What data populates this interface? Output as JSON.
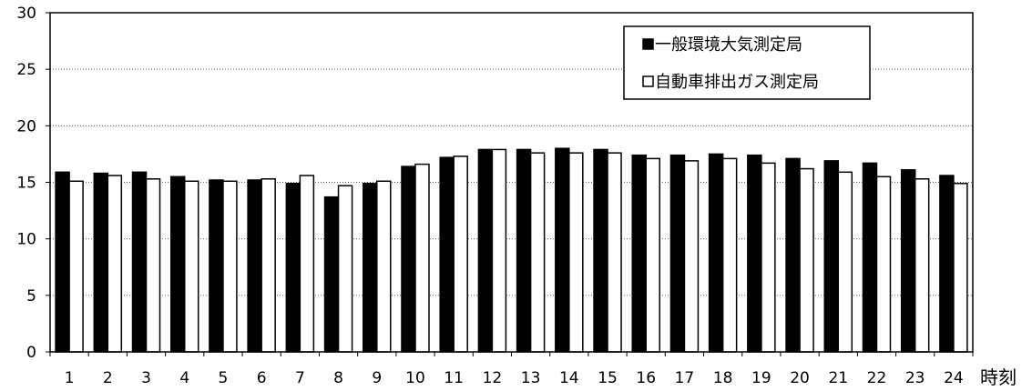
{
  "chart_data": {
    "type": "bar",
    "categories": [
      "1",
      "2",
      "3",
      "4",
      "5",
      "6",
      "7",
      "8",
      "9",
      "10",
      "11",
      "12",
      "13",
      "14",
      "15",
      "16",
      "17",
      "18",
      "19",
      "20",
      "21",
      "22",
      "23",
      "24"
    ],
    "series": [
      {
        "name": "一般環境大気測定局",
        "color": "#000000",
        "values": [
          15.9,
          15.8,
          15.9,
          15.5,
          15.2,
          15.2,
          14.9,
          13.7,
          14.9,
          16.4,
          17.2,
          17.9,
          17.9,
          18.0,
          17.9,
          17.4,
          17.4,
          17.5,
          17.4,
          17.1,
          16.9,
          16.7,
          16.1,
          15.6
        ]
      },
      {
        "name": "自動車排出ガス測定局",
        "color": "#ffffff",
        "values": [
          15.1,
          15.6,
          15.3,
          15.1,
          15.1,
          15.3,
          15.6,
          14.7,
          15.1,
          16.6,
          17.3,
          17.9,
          17.6,
          17.6,
          17.6,
          17.1,
          16.9,
          17.1,
          16.7,
          16.2,
          15.9,
          15.5,
          15.3,
          14.9
        ]
      }
    ],
    "xlabel": "時刻",
    "ylabel": "",
    "ylim": [
      0,
      30
    ],
    "yticks": [
      0,
      5,
      10,
      15,
      20,
      25,
      30
    ],
    "grid": "dotted horizontal",
    "legend_position": "top-right"
  }
}
